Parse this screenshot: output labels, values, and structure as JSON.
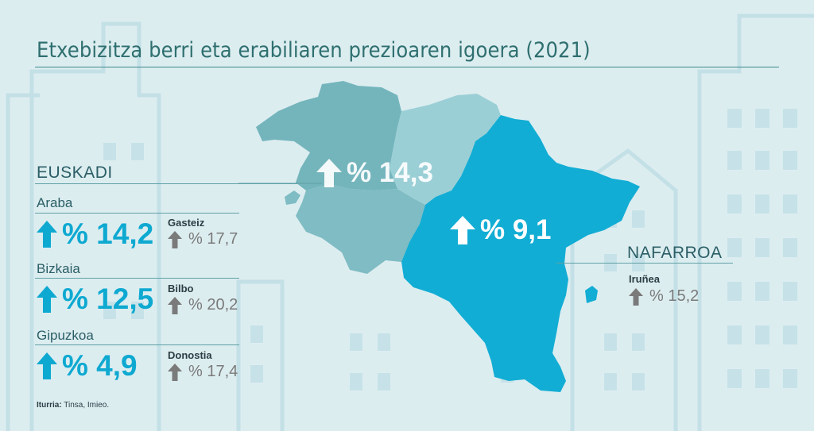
{
  "title": "Etxebizitza berri eta erabiliaren prezioaren igoera (2021)",
  "colors": {
    "background": "#dcedf0",
    "araba": "#7fbcc3",
    "bizkaia": "#74b5bc",
    "gipuzkoa": "#9bcfd6",
    "nafarroa": "#12add4",
    "accent": "#0ea9d1",
    "grey_arrow": "#7a7a7a"
  },
  "euskadi": {
    "label": "EUSKADI",
    "map_value": "% 14,3",
    "provinces": [
      {
        "name": "Araba",
        "value": "% 14,2",
        "city": "Gasteiz",
        "city_value": "% 17,7"
      },
      {
        "name": "Bizkaia",
        "value": "% 12,5",
        "city": "Bilbo",
        "city_value": "% 20,2"
      },
      {
        "name": "Gipuzkoa",
        "value": "% 4,9",
        "city": "Donostia",
        "city_value": "% 17,4"
      }
    ]
  },
  "nafarroa": {
    "label": "NAFARROA",
    "map_value": "% 9,1",
    "city": "Iruñea",
    "city_value": "% 15,2"
  },
  "source": {
    "label": "Iturria:",
    "text": " Tinsa, Imieo."
  },
  "icons": {
    "up": "arrow-up-icon"
  }
}
